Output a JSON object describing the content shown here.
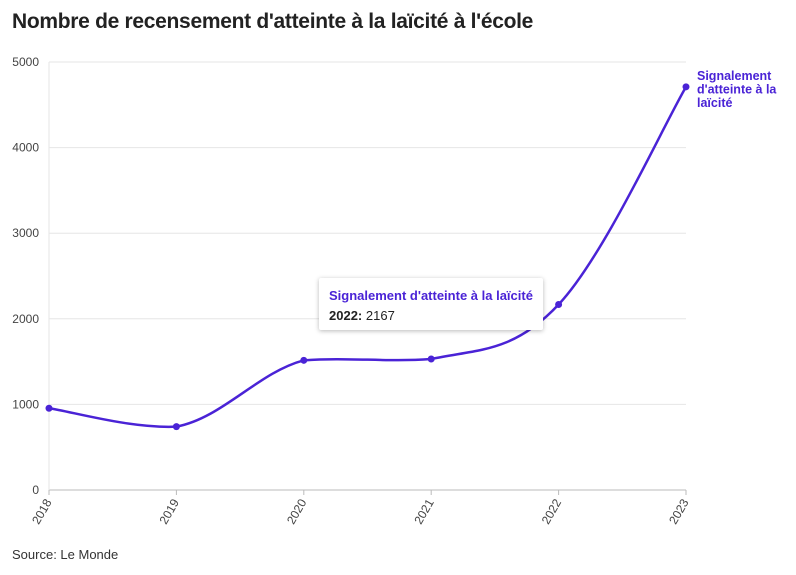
{
  "title": "Nombre de recensement d'atteinte à la laïcité à l'école",
  "source": "Source: Le Monde",
  "colors": {
    "series": "#4a23d6",
    "grid": "#e6e6e6",
    "axis": "#bbbbbb"
  },
  "tooltip": {
    "series": "Signalement d'atteinte à la laïcité",
    "year": "2022:",
    "value": "2167"
  },
  "chart_data": {
    "type": "line",
    "title": "Nombre de recensement d'atteinte à la laïcité à l'école",
    "xlabel": "",
    "ylabel": "",
    "x": [
      "2018",
      "2019",
      "2020",
      "2021",
      "2022",
      "2023"
    ],
    "series": [
      {
        "name": "Signalement d'atteinte à la laïcité",
        "values": [
          955,
          740,
          1515,
          1530,
          2167,
          4710
        ]
      }
    ],
    "ylim": [
      0,
      5000
    ],
    "yticks": [
      0,
      1000,
      2000,
      3000,
      4000,
      5000
    ],
    "grid": true,
    "legend": "end-of-line label",
    "end_label_lines": [
      "Signalement",
      "d'atteinte à la",
      "laïcité"
    ]
  }
}
